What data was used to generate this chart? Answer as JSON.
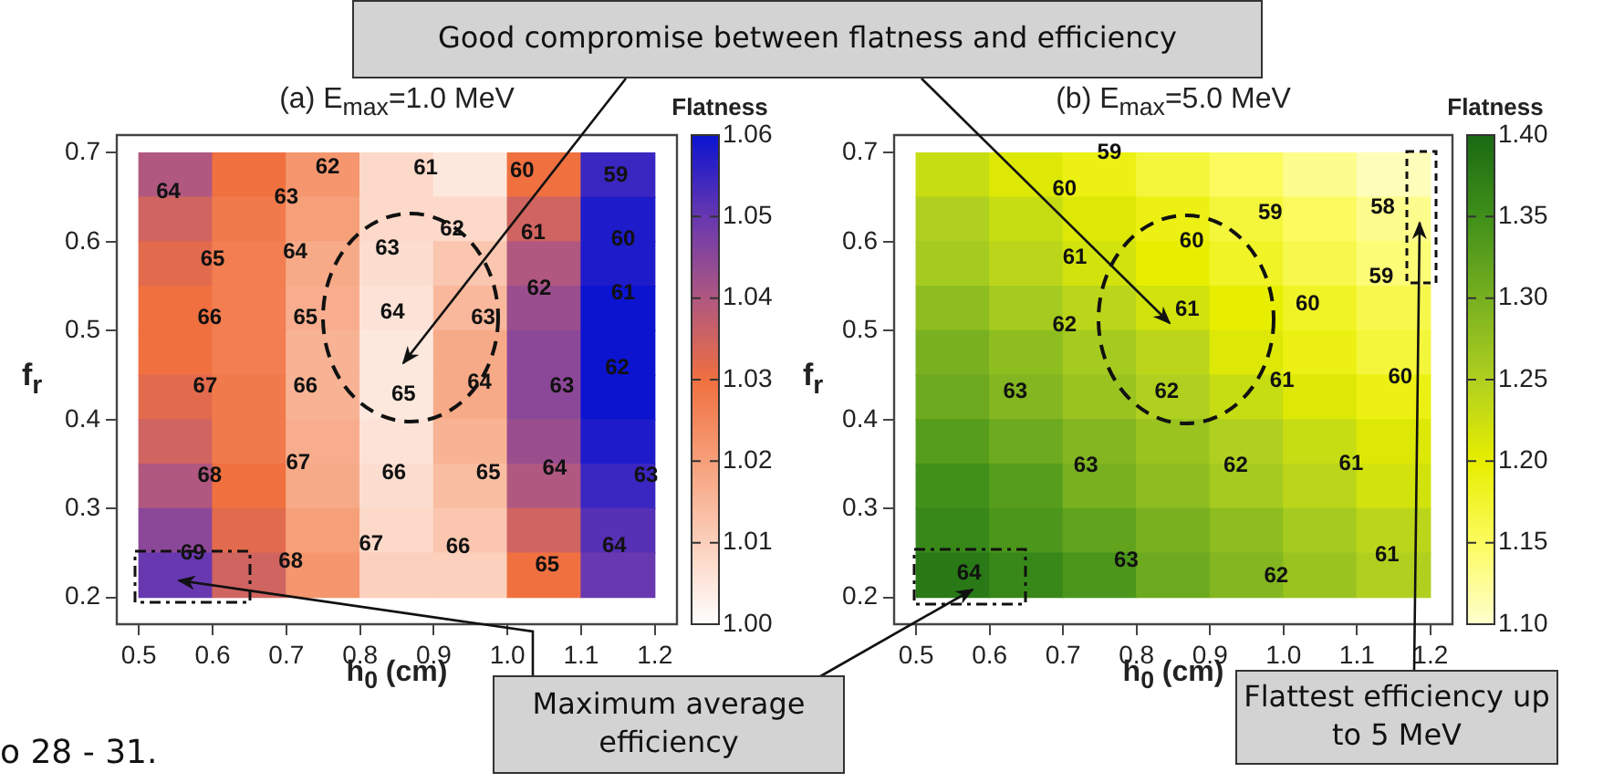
{
  "chart_data": [
    {
      "type": "heatmap",
      "title": "(a) E$_{max}$=1.0 MeV",
      "xlabel": "h$_{0}$ (cm)",
      "ylabel": "f$_{r}$",
      "clabel": "Flatness",
      "x": [
        0.55,
        0.65,
        0.75,
        0.85,
        0.95,
        1.05,
        1.15
      ],
      "y": [
        0.675,
        0.625,
        0.575,
        0.525,
        0.475,
        0.425,
        0.375,
        0.325,
        0.275,
        0.225
      ],
      "cells": [
        [
          1.04,
          1.03,
          1.022,
          1.008,
          1.005,
          1.03,
          1.055
        ],
        [
          1.035,
          1.028,
          1.02,
          1.008,
          1.008,
          1.035,
          1.058
        ],
        [
          1.032,
          1.027,
          1.018,
          1.007,
          1.012,
          1.04,
          1.058
        ],
        [
          1.03,
          1.027,
          1.017,
          1.006,
          1.015,
          1.043,
          1.06
        ],
        [
          1.03,
          1.027,
          1.016,
          1.005,
          1.018,
          1.045,
          1.06
        ],
        [
          1.032,
          1.028,
          1.016,
          1.005,
          1.018,
          1.045,
          1.06
        ],
        [
          1.035,
          1.028,
          1.017,
          1.006,
          1.016,
          1.043,
          1.058
        ],
        [
          1.04,
          1.03,
          1.018,
          1.007,
          1.014,
          1.04,
          1.055
        ],
        [
          1.045,
          1.032,
          1.02,
          1.008,
          1.012,
          1.035,
          1.052
        ],
        [
          1.05,
          1.035,
          1.022,
          1.01,
          1.01,
          1.03,
          1.05
        ]
      ],
      "xlim": [
        0.47,
        1.23
      ],
      "ylim": [
        0.17,
        0.72
      ],
      "xticks": [
        0.5,
        0.6,
        0.7,
        0.8,
        0.9,
        {
          "value": 1,
          "label": "1.0"
        },
        1.1,
        1.2
      ],
      "yticks": [
        0.2,
        0.3,
        0.4,
        0.5,
        0.6,
        0.7
      ],
      "clim": [
        1,
        1.06
      ],
      "cticks": [
        {
          "value": 1,
          "label": "1.00"
        },
        1.01,
        1.02,
        1.03,
        1.04,
        1.05,
        1.06
      ],
      "colors": [
        "#ffffff",
        "#fbd0bc",
        "#f6a07a",
        "#f07040",
        "#b05880",
        "#6838b0",
        "#0c14d0"
      ],
      "annotations": [
        "Good compromise between flatness and efficiency",
        "Maximum average efficiency",
        "o 28 - 31.",
        "64",
        "63",
        "62",
        "61",
        "60",
        "59",
        "65",
        "64",
        "63",
        "62",
        "61",
        "60",
        "66",
        "65",
        "64",
        "63",
        "62",
        "61",
        "67",
        "66",
        "65",
        "64",
        "63",
        "62",
        "68",
        "67",
        "66",
        "65",
        "64",
        "63",
        "69",
        "68",
        "67",
        "66",
        "65",
        "64"
      ]
    },
    {
      "type": "heatmap",
      "title": "(b) E$_{max}$=5.0 MeV",
      "xlabel": "h$_{0}$ (cm)",
      "ylabel": "f$_{r}$",
      "clabel": "Flatness",
      "x": [
        0.55,
        0.65,
        0.75,
        0.85,
        0.95,
        1.05,
        1.15
      ],
      "y": [
        0.675,
        0.625,
        0.575,
        0.525,
        0.475,
        0.425,
        0.375,
        0.325,
        0.275,
        0.225
      ],
      "cells": [
        [
          1.23,
          1.21,
          1.19,
          1.17,
          1.15,
          1.13,
          1.11
        ],
        [
          1.25,
          1.23,
          1.21,
          1.19,
          1.17,
          1.15,
          1.13
        ],
        [
          1.26,
          1.24,
          1.22,
          1.2,
          1.18,
          1.16,
          1.14
        ],
        [
          1.28,
          1.26,
          1.24,
          1.22,
          1.2,
          1.18,
          1.16
        ],
        [
          1.3,
          1.28,
          1.26,
          1.24,
          1.21,
          1.19,
          1.17
        ],
        [
          1.31,
          1.29,
          1.27,
          1.25,
          1.23,
          1.21,
          1.19
        ],
        [
          1.33,
          1.31,
          1.29,
          1.27,
          1.25,
          1.23,
          1.21
        ],
        [
          1.35,
          1.33,
          1.3,
          1.28,
          1.26,
          1.24,
          1.22
        ],
        [
          1.36,
          1.34,
          1.32,
          1.3,
          1.28,
          1.26,
          1.24
        ],
        [
          1.38,
          1.36,
          1.34,
          1.31,
          1.29,
          1.27,
          1.25
        ]
      ],
      "xlim": [
        0.47,
        1.23
      ],
      "ylim": [
        0.17,
        0.72
      ],
      "xticks": [
        0.5,
        0.6,
        0.7,
        0.8,
        0.9,
        {
          "value": 1,
          "label": "1.0"
        },
        1.1,
        1.2
      ],
      "yticks": [
        0.2,
        0.3,
        0.4,
        0.5,
        0.6,
        0.7
      ],
      "clim": [
        1.1,
        1.4
      ],
      "cticks": [
        {
          "value": 1.1,
          "label": "1.10"
        },
        1.15,
        {
          "value": 1.2,
          "label": "1.20"
        },
        1.25,
        {
          "value": 1.3,
          "label": "1.30"
        },
        1.35,
        {
          "value": 1.4,
          "label": "1.40"
        }
      ],
      "colors": [
        "#ffffd0",
        "#fbfb60",
        "#e8ee00",
        "#b0d020",
        "#78b020",
        "#40901a",
        "#1a6a14"
      ],
      "annotations": [
        "Flattest efficiency up to 5 MeV",
        "59",
        "60",
        "59",
        "58",
        "61",
        "60",
        "59",
        "62",
        "61",
        "60",
        "63",
        "62",
        "61",
        "60",
        "63",
        "62",
        "61",
        "64",
        "63",
        "62",
        "61"
      ]
    }
  ]
}
